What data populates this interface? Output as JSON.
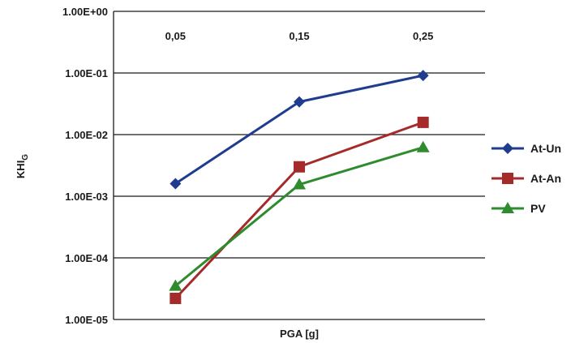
{
  "chart_data": {
    "type": "line",
    "x_scale": "categorical",
    "y_scale": "log",
    "categories": [
      "0,05",
      "0,15",
      "0,25"
    ],
    "xlabel": "PGA [g]",
    "ylabel": "KHI",
    "ylabel_subscript": "G",
    "y_tick_labels": [
      "1.00E+00",
      "1.00E-01",
      "1.00E-02",
      "1.00E-03",
      "1.00E-04",
      "1.00E-05"
    ],
    "ylim": [
      1e-05,
      1
    ],
    "x_ticks_position": "top",
    "grid": "horizontal",
    "legend_position": "right",
    "series": [
      {
        "name": "At-Un",
        "color": "#1f3c8f",
        "marker": "diamond",
        "values": [
          0.0016,
          0.034,
          0.091
        ]
      },
      {
        "name": "At-An",
        "color": "#a52a2a",
        "marker": "square",
        "values": [
          2.2e-05,
          0.003,
          0.0158
        ]
      },
      {
        "name": "PV",
        "color": "#2e8b2e",
        "marker": "triangle",
        "values": [
          3.5e-05,
          0.00155,
          0.0062
        ]
      }
    ]
  }
}
